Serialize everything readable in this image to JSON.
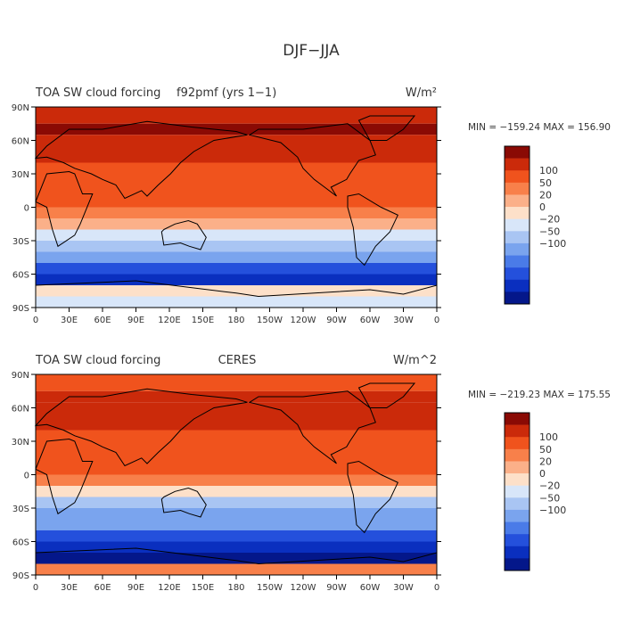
{
  "figure_title": "DJF−JJA",
  "chart_data": [
    {
      "type": "heatmap",
      "title": "TOA SW cloud forcing",
      "case_label": "f92pmf (yrs 1−1)",
      "units": "W/m²",
      "stats_text": "MIN = −159.24 MAX = 156.90",
      "min": -159.24,
      "max": 156.9,
      "x_ticks": [
        "0",
        "30E",
        "60E",
        "90E",
        "120E",
        "150E",
        "180",
        "150W",
        "120W",
        "90W",
        "60W",
        "30W",
        "0"
      ],
      "y_ticks": [
        "90N",
        "60N",
        "30N",
        "0",
        "30S",
        "60S",
        "90S"
      ],
      "xlim": [
        0,
        360
      ],
      "ylim": [
        -90,
        90
      ],
      "levels": [
        -100,
        -50,
        -20,
        0,
        20,
        50,
        100
      ],
      "level_labels": [
        "100",
        "50",
        "20",
        "0",
        "−20",
        "−50",
        "−100"
      ],
      "colors": [
        "#8a0a04",
        "#cb2a0a",
        "#f0531d",
        "#f8804a",
        "#fbb089",
        "#fde0c9",
        "#d8e6f9",
        "#a9c5f3",
        "#7aa4ee",
        "#4a7be8",
        "#2450dc",
        "#0a2fbf",
        "#04178a"
      ],
      "lat_profile": [
        [
          85,
          60
        ],
        [
          75,
          115
        ],
        [
          65,
          80
        ],
        [
          50,
          60
        ],
        [
          40,
          30
        ],
        [
          30,
          25
        ],
        [
          20,
          40
        ],
        [
          10,
          30
        ],
        [
          0,
          15
        ],
        [
          -10,
          -5
        ],
        [
          -20,
          -25
        ],
        [
          -30,
          -40
        ],
        [
          -40,
          -80
        ],
        [
          -50,
          -110
        ],
        [
          -60,
          -120
        ],
        [
          -70,
          -15
        ],
        [
          -80,
          -20
        ],
        [
          -90,
          -20
        ]
      ]
    },
    {
      "type": "heatmap",
      "title": "TOA SW cloud forcing",
      "case_label": "CERES",
      "units": "W/m^2",
      "stats_text": "MIN = −219.23 MAX = 175.55",
      "min": -219.23,
      "max": 175.55,
      "x_ticks": [
        "0",
        "30E",
        "60E",
        "90E",
        "120E",
        "150E",
        "180",
        "150W",
        "120W",
        "90W",
        "60W",
        "30W",
        "0"
      ],
      "y_ticks": [
        "90N",
        "60N",
        "30N",
        "0",
        "30S",
        "60S",
        "90S"
      ],
      "xlim": [
        0,
        360
      ],
      "ylim": [
        -90,
        90
      ],
      "levels": [
        -100,
        -50,
        -20,
        0,
        20,
        50,
        100
      ],
      "level_labels": [
        "100",
        "50",
        "20",
        "0",
        "−20",
        "−50",
        "−100"
      ],
      "colors": [
        "#8a0a04",
        "#cb2a0a",
        "#f0531d",
        "#f8804a",
        "#fbb089",
        "#fde0c9",
        "#d8e6f9",
        "#a9c5f3",
        "#7aa4ee",
        "#4a7be8",
        "#2450dc",
        "#0a2fbf",
        "#04178a"
      ],
      "lat_profile": [
        [
          85,
          30
        ],
        [
          75,
          80
        ],
        [
          65,
          90
        ],
        [
          50,
          70
        ],
        [
          40,
          45
        ],
        [
          30,
          40
        ],
        [
          20,
          35
        ],
        [
          10,
          25
        ],
        [
          0,
          10
        ],
        [
          -10,
          -15
        ],
        [
          -20,
          -30
        ],
        [
          -30,
          -50
        ],
        [
          -40,
          -80
        ],
        [
          -50,
          -110
        ],
        [
          -60,
          -130
        ],
        [
          -70,
          -140
        ],
        [
          -80,
          10
        ],
        [
          -90,
          10
        ]
      ]
    }
  ]
}
